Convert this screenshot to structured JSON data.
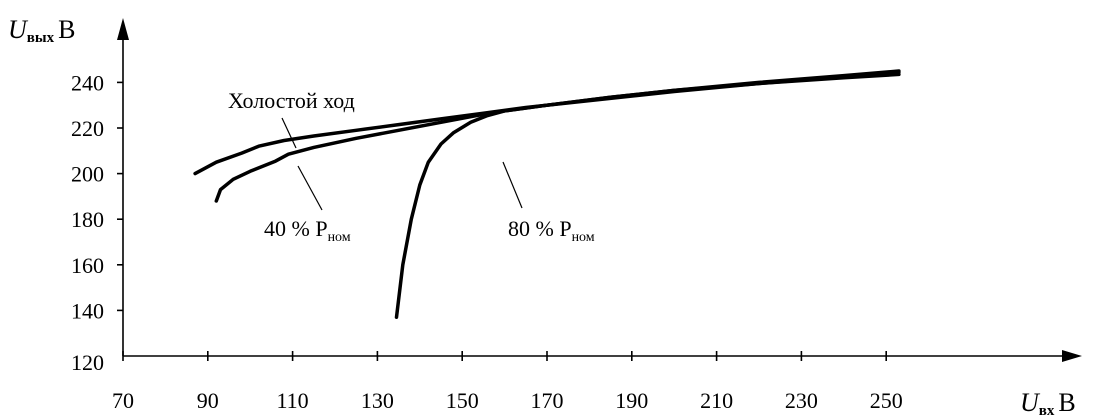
{
  "chart_data": {
    "type": "line",
    "x_axis": {
      "label_symbol": "U",
      "label_subscript": "вх",
      "label_unit": "В",
      "range": [
        70,
        260
      ],
      "ticks": [
        "70",
        "90",
        "110",
        "130",
        "150",
        "170",
        "190",
        "210",
        "230",
        "250"
      ]
    },
    "y_axis": {
      "label_symbol": "U",
      "label_subscript": "вых",
      "label_unit": "В",
      "range": [
        120,
        255
      ],
      "ticks": [
        "120",
        "140",
        "160",
        "180",
        "200",
        "220",
        "240"
      ]
    },
    "grid": false,
    "series": [
      {
        "name": "Холостой ход",
        "x": [
          87,
          92,
          98,
          102,
          108,
          115,
          125,
          135,
          145,
          155,
          165,
          180,
          200,
          220,
          240,
          253
        ],
        "y": [
          200,
          205,
          209,
          212,
          214.5,
          216.5,
          219,
          221.5,
          224,
          226.5,
          229,
          232,
          236,
          239.5,
          242.5,
          244.5
        ]
      },
      {
        "name": "40 % P",
        "name_subscript": "ном",
        "x": [
          92,
          93,
          96,
          100,
          106,
          109,
          115,
          125,
          135,
          145,
          155,
          160,
          170,
          185,
          200,
          220,
          240,
          253
        ],
        "y": [
          188,
          193,
          197.5,
          201,
          205.5,
          208.5,
          211.5,
          215.5,
          219,
          222.5,
          226,
          227.5,
          230,
          233.5,
          236.5,
          240,
          243,
          245
        ]
      },
      {
        "name": "80 % P",
        "name_subscript": "ном",
        "x": [
          134.5,
          136,
          138,
          140,
          142,
          145,
          148,
          152,
          156,
          160,
          170,
          185,
          200,
          220,
          240,
          253
        ],
        "y": [
          137,
          160,
          180,
          195,
          205,
          213,
          218,
          222.5,
          225.5,
          227.5,
          230,
          233.5,
          236.5,
          239.5,
          242,
          243.5
        ]
      }
    ],
    "annotations": [
      {
        "text": "Холостой ход"
      },
      {
        "text": "40 % P",
        "subscript": "ном"
      },
      {
        "text": "80 % P",
        "subscript": "ном"
      }
    ]
  }
}
